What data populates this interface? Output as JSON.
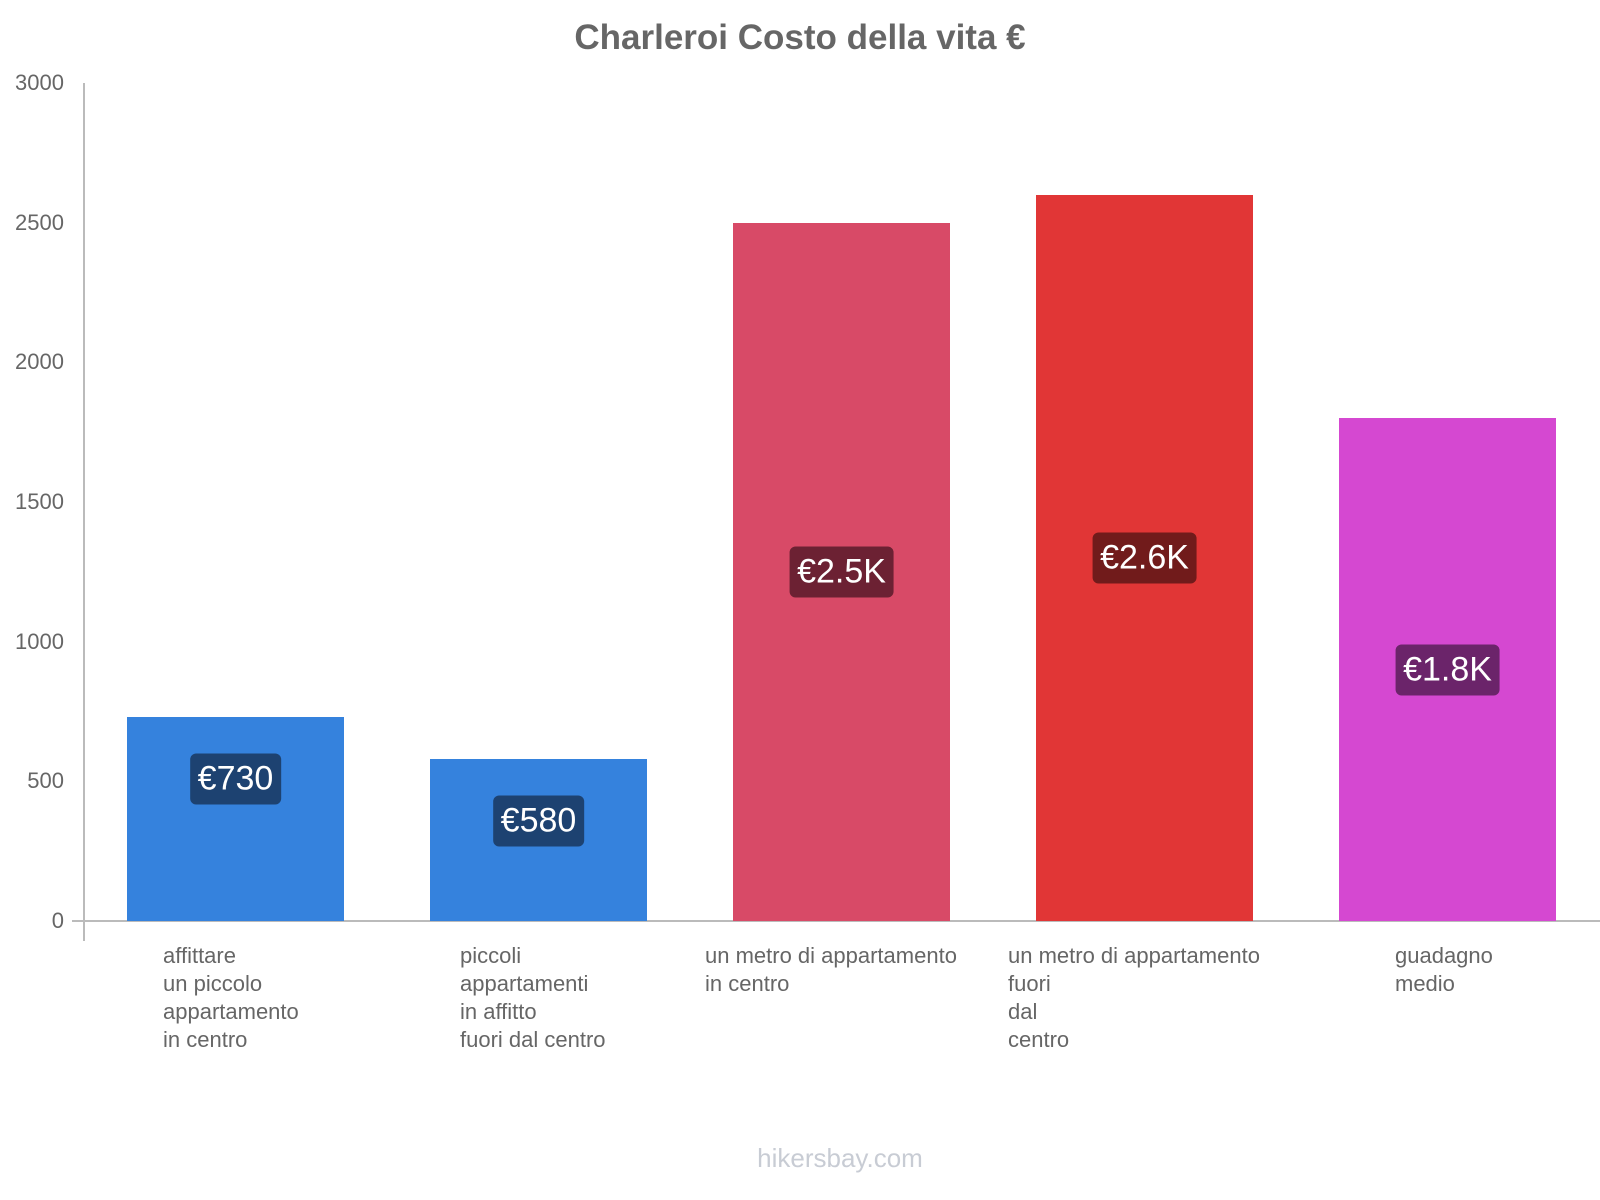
{
  "chart_data": {
    "type": "bar",
    "title": "Charleroi Costo della vita €",
    "xlabel": "",
    "ylabel": "",
    "ylim": [
      0,
      3000
    ],
    "yticks": [
      "0",
      "500",
      "1000",
      "1500",
      "2000",
      "2500",
      "3000"
    ],
    "grid": false,
    "legend": null,
    "categories": [
      "affittare\nun piccolo\nappartamento\nin centro",
      "piccoli\nappartamenti\nin affitto\nfuori dal centro",
      "un metro di appartamento\nin centro",
      "un metro di appartamento\nfuori\ndal\ncentro",
      "guadagno\nmedio"
    ],
    "values": [
      730,
      580,
      2500,
      2600,
      1800
    ],
    "data_labels": [
      "€730",
      "€580",
      "€2.5K",
      "€2.6K",
      "€1.8K"
    ],
    "colors": [
      "#3582dd",
      "#3582dd",
      "#d84a67",
      "#e13636",
      "#d548d1"
    ],
    "label_bg_colors": [
      "#1d4271",
      "#1d4271",
      "#6c2133",
      "#711b1b",
      "#6b246a"
    ]
  },
  "watermark": "hikersbay.com"
}
